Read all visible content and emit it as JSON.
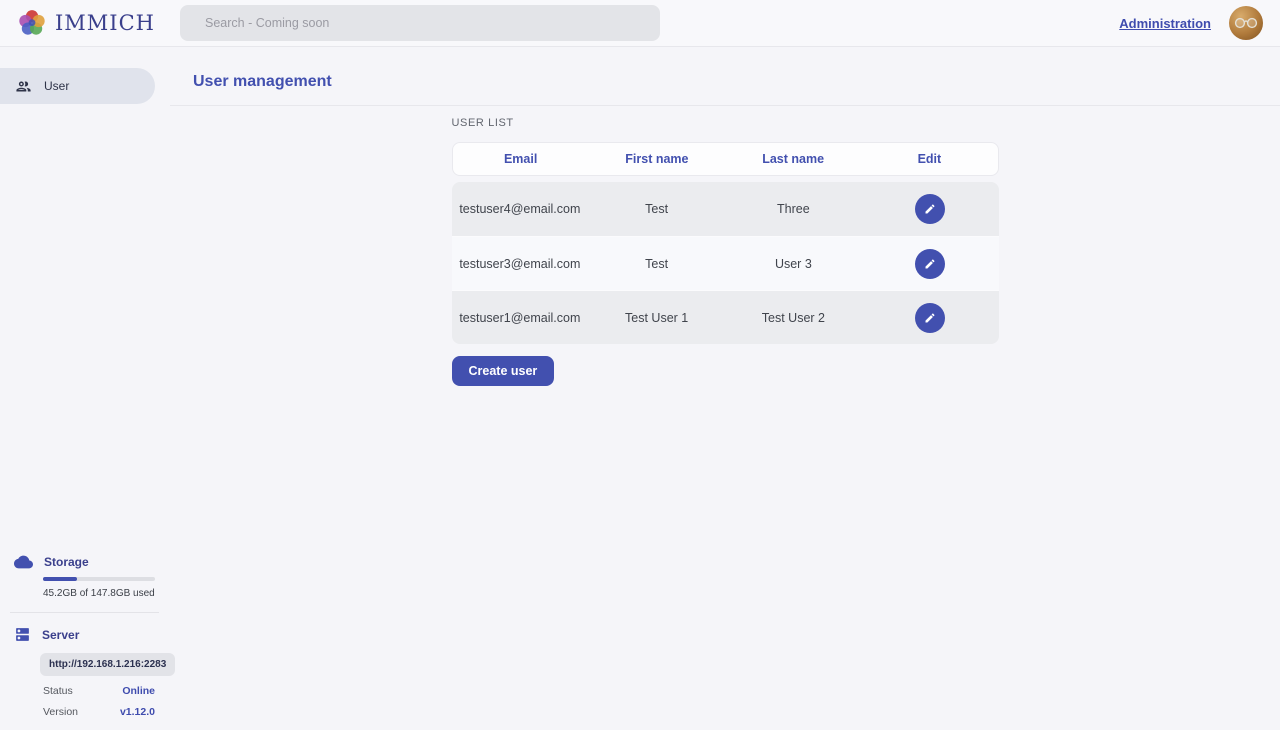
{
  "topbar": {
    "app_name": "IMMICH",
    "search_placeholder": "Search - Coming soon",
    "administration_label": "Administration"
  },
  "sidebar": {
    "items": [
      {
        "label": "User"
      }
    ],
    "storage": {
      "title": "Storage",
      "usage_text": "45.2GB of 147.8GB used",
      "percent_used": 30.6
    },
    "server": {
      "title": "Server",
      "url": "http://192.168.1.216:2283",
      "status_label": "Status",
      "status_value": "Online",
      "version_label": "Version",
      "version_value": "v1.12.0"
    }
  },
  "main": {
    "page_title": "User management",
    "section_title": "USER LIST",
    "table": {
      "columns": [
        "Email",
        "First name",
        "Last name",
        "Edit"
      ],
      "rows": [
        {
          "email": "testuser4@email.com",
          "first_name": "Test",
          "last_name": "Three"
        },
        {
          "email": "testuser3@email.com",
          "first_name": "Test",
          "last_name": "User 3"
        },
        {
          "email": "testuser1@email.com",
          "first_name": "Test User 1",
          "last_name": "Test User 2"
        }
      ]
    },
    "create_user_label": "Create user"
  },
  "colors": {
    "primary": "#4250af",
    "page_background": "#f5f5f9",
    "row_dark": "#ebecef",
    "row_light": "#f8f9fc"
  }
}
